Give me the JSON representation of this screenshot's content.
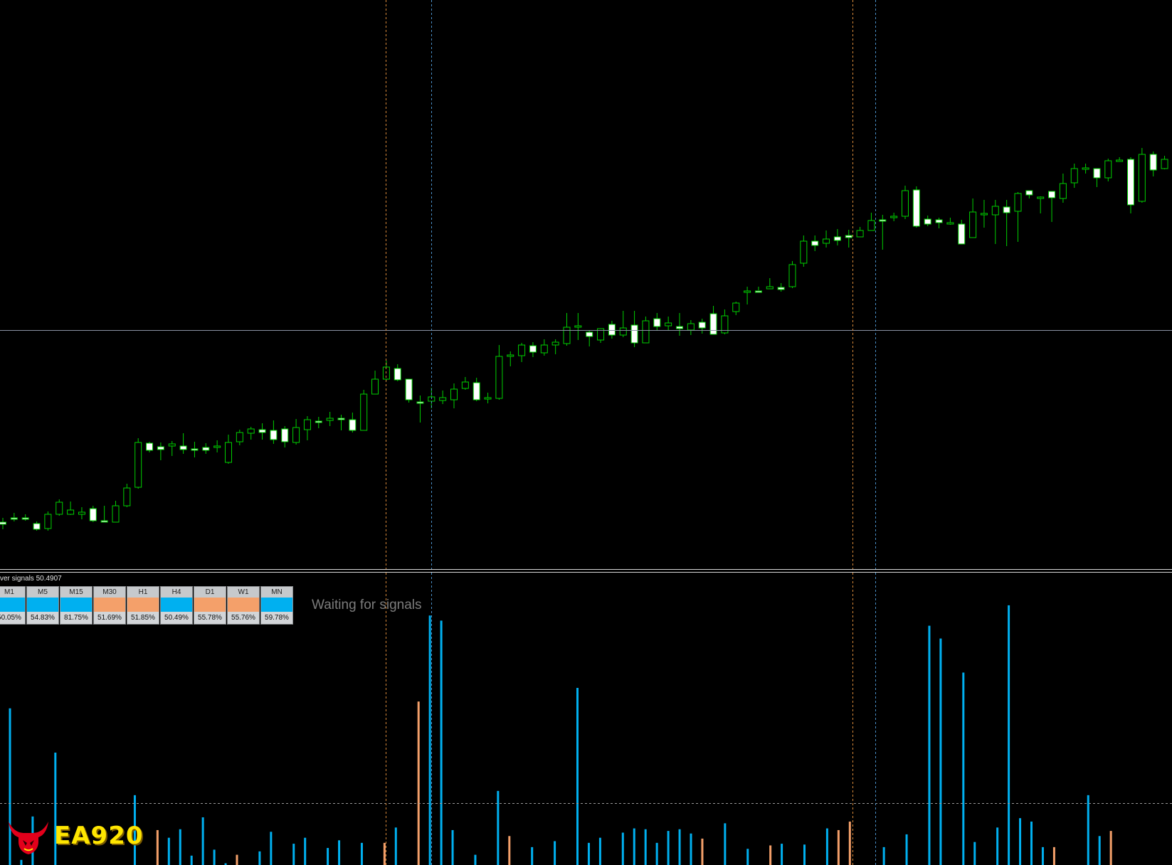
{
  "indicator": {
    "title": "ver signals 50.4907",
    "status": "Waiting for signals",
    "timeframes": [
      {
        "name": "M1",
        "state": "buy",
        "percent": "50.05%"
      },
      {
        "name": "M5",
        "state": "buy",
        "percent": "54.83%"
      },
      {
        "name": "M15",
        "state": "buy",
        "percent": "81.75%"
      },
      {
        "name": "M30",
        "state": "sell",
        "percent": "51.69%"
      },
      {
        "name": "H1",
        "state": "sell",
        "percent": "51.85%"
      },
      {
        "name": "H4",
        "state": "buy",
        "percent": "50.49%"
      },
      {
        "name": "D1",
        "state": "sell",
        "percent": "55.78%"
      },
      {
        "name": "W1",
        "state": "sell",
        "percent": "55.76%"
      },
      {
        "name": "MN",
        "state": "buy",
        "percent": "59.78%"
      }
    ]
  },
  "logo": {
    "text": "EA920"
  },
  "colors": {
    "buy": "#00b0f0",
    "sell": "#f4a06a",
    "bull_candle": "#000000",
    "bear_candle": "#ffffff",
    "candle_outline": "#00d000",
    "horizontal_line": "#8a93a5",
    "vline_orange": "#d98a3a",
    "vline_blue": "#4a90c8",
    "text_status": "#7c7c7c"
  },
  "chart_data": [
    {
      "type": "candlestick",
      "candles": [
        [
          734,
          737,
          744,
          728
        ],
        [
          728,
          728,
          733,
          721
        ],
        [
          728,
          729,
          732,
          723
        ],
        [
          736,
          744,
          746,
          733
        ],
        [
          743,
          723,
          746,
          719
        ],
        [
          723,
          706,
          725,
          702
        ],
        [
          723,
          717,
          724,
          705
        ],
        [
          723,
          720,
          730,
          713
        ],
        [
          715,
          732,
          734,
          711
        ],
        [
          732,
          732,
          734,
          711
        ],
        [
          734,
          711,
          734,
          704
        ],
        [
          711,
          686,
          713,
          680
        ],
        [
          685,
          622,
          687,
          616
        ],
        [
          623,
          633,
          636,
          621
        ],
        [
          628,
          632,
          647,
          622
        ],
        [
          627,
          624,
          641,
          620
        ],
        [
          627,
          632,
          638,
          609
        ],
        [
          631,
          632,
          643,
          621
        ],
        [
          629,
          633,
          638,
          623
        ],
        [
          629,
          627,
          636,
          619
        ],
        [
          650,
          622,
          652,
          611
        ],
        [
          621,
          608,
          626,
          604
        ],
        [
          609,
          603,
          618,
          600
        ],
        [
          604,
          608,
          618,
          595
        ],
        [
          605,
          618,
          624,
          591
        ],
        [
          603,
          621,
          629,
          599
        ],
        [
          622,
          601,
          625,
          589
        ],
        [
          604,
          590,
          619,
          585
        ],
        [
          592,
          593,
          602,
          586
        ],
        [
          591,
          588,
          599,
          579
        ],
        [
          588,
          590,
          605,
          583
        ],
        [
          590,
          605,
          608,
          580
        ],
        [
          605,
          554,
          605,
          548
        ],
        [
          554,
          533,
          554,
          521
        ],
        [
          533,
          516,
          535,
          507
        ],
        [
          518,
          534,
          536,
          512
        ],
        [
          533,
          562,
          566,
          533
        ],
        [
          565,
          565,
          594,
          556
        ],
        [
          564,
          558,
          574,
          545
        ],
        [
          563,
          559,
          568,
          549
        ],
        [
          562,
          547,
          574,
          539
        ],
        [
          546,
          537,
          548,
          530
        ],
        [
          538,
          562,
          564,
          531
        ],
        [
          561,
          559,
          567,
          552
        ],
        [
          560,
          501,
          562,
          485
        ],
        [
          501,
          499,
          515,
          494
        ],
        [
          500,
          485,
          509,
          482
        ],
        [
          486,
          495,
          502,
          481
        ],
        [
          496,
          485,
          500,
          477
        ],
        [
          485,
          481,
          498,
          477
        ],
        [
          483,
          460,
          486,
          440
        ],
        [
          460,
          458,
          478,
          440
        ],
        [
          467,
          473,
          487,
          464
        ],
        [
          478,
          462,
          482,
          463
        ],
        [
          456,
          471,
          476,
          451
        ],
        [
          471,
          461,
          474,
          437
        ],
        [
          457,
          482,
          488,
          437
        ],
        [
          482,
          451,
          482,
          445
        ],
        [
          448,
          459,
          465,
          440
        ],
        [
          458,
          454,
          465,
          445
        ],
        [
          459,
          462,
          472,
          440
        ],
        [
          464,
          455,
          471,
          450
        ],
        [
          453,
          461,
          469,
          448
        ],
        [
          441,
          470,
          470,
          430
        ],
        [
          468,
          444,
          470,
          435
        ],
        [
          438,
          426,
          443,
          424
        ],
        [
          411,
          409,
          428,
          403
        ],
        [
          409,
          409,
          408,
          403
        ],
        [
          406,
          403,
          406,
          391
        ],
        [
          404,
          407,
          410,
          398
        ],
        [
          403,
          372,
          405,
          367
        ],
        [
          370,
          339,
          375,
          331
        ],
        [
          339,
          345,
          353,
          331
        ],
        [
          342,
          336,
          348,
          324
        ],
        [
          333,
          338,
          345,
          322
        ],
        [
          331,
          334,
          348,
          323
        ],
        [
          333,
          324,
          333,
          319
        ],
        [
          324,
          310,
          324,
          299
        ],
        [
          309,
          309,
          351,
          302
        ],
        [
          306,
          304,
          311,
          299
        ],
        [
          304,
          268,
          308,
          261
        ],
        [
          267,
          318,
          320,
          262
        ],
        [
          308,
          315,
          318,
          303
        ],
        [
          309,
          313,
          321,
          306
        ],
        [
          314,
          313,
          316,
          306
        ],
        [
          315,
          343,
          343,
          309
        ],
        [
          334,
          298,
          334,
          279
        ],
        [
          302,
          300,
          320,
          281
        ],
        [
          302,
          290,
          343,
          281
        ],
        [
          291,
          299,
          346,
          281
        ],
        [
          297,
          272,
          340,
          270
        ],
        [
          268,
          274,
          279,
          272
        ],
        [
          279,
          277,
          300,
          276
        ],
        [
          269,
          278,
          312,
          273
        ],
        [
          279,
          258,
          285,
          244
        ],
        [
          257,
          237,
          264,
          230
        ],
        [
          238,
          236,
          244,
          230
        ],
        [
          237,
          250,
          263,
          239
        ],
        [
          250,
          226,
          255,
          223
        ],
        [
          226,
          225,
          227,
          221
        ],
        [
          224,
          288,
          300,
          221
        ],
        [
          283,
          217,
          285,
          208
        ],
        [
          217,
          239,
          248,
          213
        ],
        [
          237,
          224,
          238,
          219
        ],
        [
          224,
          218,
          227,
          209
        ],
        [
          218,
          209,
          217,
          205
        ],
        [
          212,
          210,
          214,
          192
        ],
        [
          210,
          178,
          215,
          172
        ],
        [
          178,
          302,
          302,
          155
        ],
        [
          302,
          287,
          302,
          268
        ],
        [
          288,
          290,
          309,
          282
        ],
        [
          290,
          233,
          290,
          228
        ],
        [
          234,
          185,
          264,
          182
        ],
        [
          184,
          131,
          185,
          129
        ],
        [
          131,
          165,
          177,
          120
        ],
        [
          167,
          151,
          167,
          152
        ]
      ]
    },
    {
      "type": "bar",
      "series": [
        {
          "name": "",
          "values": [
            184,
            6,
            57,
            0,
            132,
            0,
            0,
            0,
            0,
            0,
            0,
            82,
            0,
            41,
            32,
            42,
            11,
            56,
            18,
            2,
            12,
            0,
            16,
            39,
            0,
            25,
            32,
            0,
            20,
            29,
            0,
            26,
            0,
            26,
            44,
            0,
            192,
            293,
            287,
            41,
            0,
            12,
            0,
            87,
            34,
            0,
            21,
            0,
            28,
            0,
            208,
            26,
            32,
            0,
            38,
            43,
            42,
            26,
            40,
            42,
            37,
            31,
            0,
            49,
            0,
            19,
            0,
            23,
            25,
            0,
            24,
            0,
            43,
            41,
            51,
            0,
            0,
            21,
            0,
            36,
            0,
            281,
            266,
            0,
            226,
            27,
            0,
            44,
            305,
            55,
            51,
            21,
            21,
            0,
            0,
            82,
            34,
            40,
            0,
            0,
            0,
            0,
            0,
            0,
            74,
            0,
            37,
            0,
            17,
            0,
            37,
            0,
            32,
            43,
            0,
            0,
            0,
            24,
            36,
            41,
            43,
            0,
            0,
            0,
            0,
            57,
            51,
            0,
            0,
            39,
            23,
            21,
            0,
            34,
            0,
            46,
            0,
            42,
            0,
            0,
            0,
            0,
            0,
            0,
            42,
            0,
            38,
            44,
            0,
            0,
            0,
            0,
            0,
            0,
            0,
            0,
            0,
            0,
            0,
            0,
            0,
            0,
            0,
            0,
            0,
            0,
            0,
            0
          ]
        }
      ]
    }
  ]
}
